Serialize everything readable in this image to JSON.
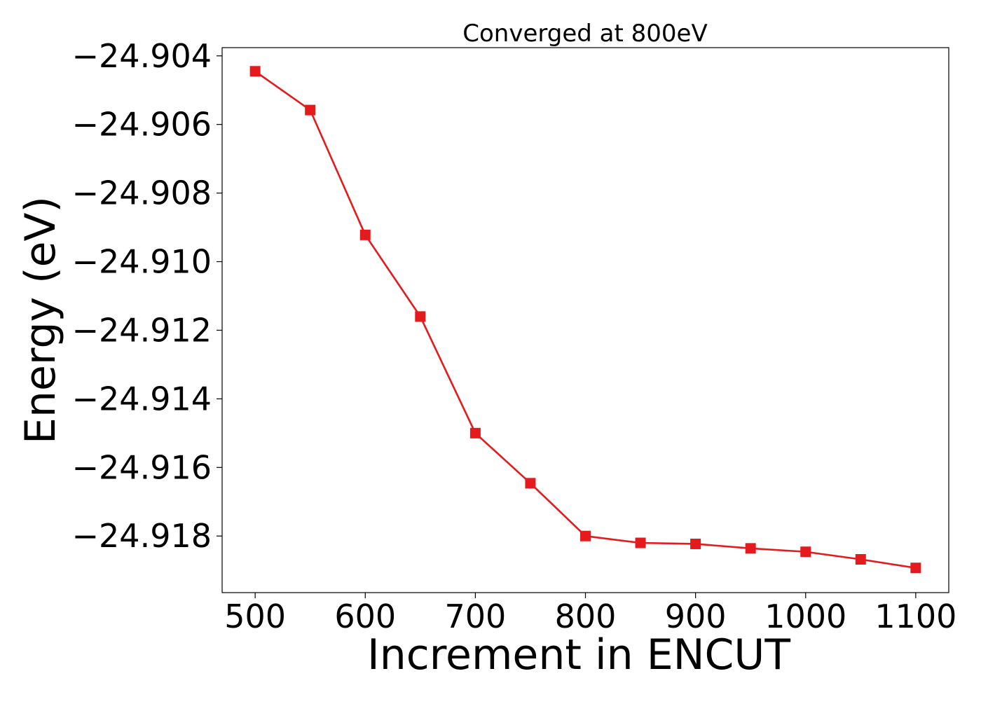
{
  "chart_data": {
    "type": "line",
    "title": "Converged at 800eV",
    "xlabel": "Increment in ENCUT",
    "ylabel": "Energy (eV)",
    "xlim": [
      470,
      1130
    ],
    "ylim": [
      -24.91965,
      -24.90376
    ],
    "xticks": [
      500,
      600,
      700,
      800,
      900,
      1000,
      1100
    ],
    "yticks": [
      -24.904,
      -24.906,
      -24.908,
      -24.91,
      -24.912,
      -24.914,
      -24.916,
      -24.918
    ],
    "ytick_labels": [
      "−24.904",
      "−24.906",
      "−24.908",
      "−24.910",
      "−24.912",
      "−24.914",
      "−24.916",
      "−24.918"
    ],
    "grid": false,
    "series": [
      {
        "color": "#e41a1c",
        "marker": "square",
        "x": [
          500,
          550,
          600,
          650,
          700,
          750,
          800,
          850,
          900,
          950,
          1000,
          1050,
          1100
        ],
        "y": [
          -24.90445,
          -24.90558,
          -24.90922,
          -24.9116,
          -24.915,
          -24.91646,
          -24.918,
          -24.9182,
          -24.91823,
          -24.91836,
          -24.91846,
          -24.91868,
          -24.91893
        ]
      }
    ]
  }
}
